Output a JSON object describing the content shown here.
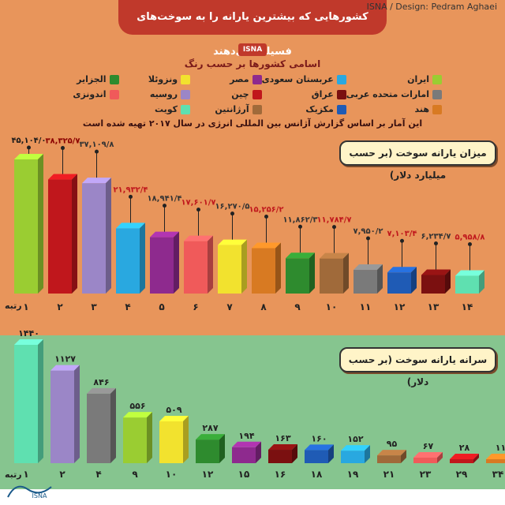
{
  "header": {
    "title": "کشورهایی که بیشترین یارانه را به سوخت‌های فسیلی می‌دهند",
    "badge": "ISNA",
    "legend_title": "اسامی کشورها بر حسب رنگ",
    "source": "این آمار بر اساس گزارش آژانس بین المللی انرژی در سال ۲۰۱۷ تهیه شده است"
  },
  "legend": [
    {
      "name": "ایران",
      "color": "#9acd32"
    },
    {
      "name": "عربستان سعودی",
      "color": "#29a8e0"
    },
    {
      "name": "مصر",
      "color": "#8e2a8e"
    },
    {
      "name": "ونزوئلا",
      "color": "#f2e22e"
    },
    {
      "name": "الجزایر",
      "color": "#2e8b2e"
    },
    {
      "name": "امارات متحده عربی",
      "color": "#7a7a7a"
    },
    {
      "name": "عراق",
      "color": "#7b1010"
    },
    {
      "name": "چین",
      "color": "#c0171c"
    },
    {
      "name": "روسیه",
      "color": "#9b86c7"
    },
    {
      "name": "اندونزی",
      "color": "#f05a5a"
    },
    {
      "name": "هند",
      "color": "#d87a22"
    },
    {
      "name": "مکزیک",
      "color": "#1f5bb5"
    },
    {
      "name": "آرژانتین",
      "color": "#a06a3a"
    },
    {
      "name": "کویت",
      "color": "#5fe0b0"
    }
  ],
  "top_section": {
    "label": "میزان یارانه سوخت (بر حسب میلیارد دلار)",
    "rank_label": "رتبه"
  },
  "bottom_section": {
    "label": "سرانه یارانه سوخت (بر حسب دلار)",
    "rank_label": "رتبه"
  },
  "footer": {
    "credit": "ISNA / Design: Pedram Aghaei"
  },
  "chart_data": [
    {
      "type": "bar",
      "title": "میزان یارانه سوخت (بر حسب میلیارد دلار)",
      "categories": [
        "۱",
        "۲",
        "۳",
        "۴",
        "۵",
        "۶",
        "۷",
        "۸",
        "۹",
        "۱۰",
        "۱۱",
        "۱۲",
        "۱۳",
        "۱۴"
      ],
      "value_labels": [
        "۴۵,۱۰۴/۰",
        "۳۸,۳۲۵/۷",
        "۳۷,۱۰۹/۸",
        "۲۱,۹۳۲/۴",
        "۱۸,۹۴۱/۴",
        "۱۷,۶۰۱/۷",
        "۱۶,۲۷۰/۵",
        "۱۵,۲۵۶/۲",
        "۱۱,۸۶۲/۳",
        "۱۱,۷۸۴/۷",
        "۷,۹۵۰/۲",
        "۷,۱۰۳/۴",
        "۶,۲۳۴/۷",
        "۵,۹۵۸/۸"
      ],
      "values": [
        45104.0,
        38325.7,
        37109.8,
        21932.4,
        18941.4,
        17601.7,
        16270.5,
        15256.2,
        11862.3,
        11784.7,
        7950.2,
        7103.4,
        6234.7,
        5958.8
      ],
      "colors": [
        "#9acd32",
        "#c0171c",
        "#9b86c7",
        "#29a8e0",
        "#8e2a8e",
        "#f05a5a",
        "#f2e22e",
        "#d87a22",
        "#2e8b2e",
        "#a06a3a",
        "#7a7a7a",
        "#1f5bb5",
        "#7b1010",
        "#5fe0b0"
      ],
      "label_colors": [
        "#1a1a1a",
        "#8b0000",
        "#333333",
        "#c0171c",
        "#333333",
        "#c0171c",
        "#333333",
        "#c0171c",
        "#333333",
        "#c0171c",
        "#333333",
        "#c0171c",
        "#333333",
        "#c0171c"
      ]
    },
    {
      "type": "bar",
      "title": "سرانه یارانه سوخت (بر حسب دلار)",
      "categories": [
        "۱",
        "۲",
        "۴",
        "۹",
        "۱۰",
        "۱۲",
        "۱۵",
        "۱۶",
        "۱۸",
        "۱۹",
        "۲۱",
        "۲۳",
        "۲۹",
        "۳۴"
      ],
      "value_labels": [
        "۱۴۴۰",
        "۱۱۲۷",
        "۸۴۶",
        "۵۵۶",
        "۵۰۹",
        "۲۸۷",
        "۱۹۴",
        "۱۶۳",
        "۱۶۰",
        "۱۵۲",
        "۹۵",
        "۶۷",
        "۲۸",
        "۱۱"
      ],
      "values": [
        1440,
        1127,
        846,
        556,
        509,
        287,
        194,
        163,
        160,
        152,
        95,
        67,
        28,
        11
      ],
      "colors": [
        "#5fe0b0",
        "#9b86c7",
        "#7a7a7a",
        "#9acd32",
        "#f2e22e",
        "#2e8b2e",
        "#8e2a8e",
        "#7b1010",
        "#1f5bb5",
        "#29a8e0",
        "#a06a3a",
        "#f05a5a",
        "#c0171c",
        "#d87a22"
      ]
    }
  ]
}
